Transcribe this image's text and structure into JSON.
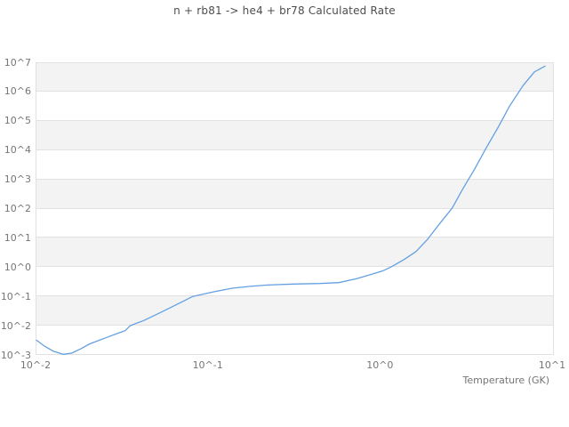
{
  "title": "n + rb81 -> he4 + br78 Calculated Rate",
  "x_axis": {
    "label": "Temperature (GK)",
    "tick_labels": [
      "10^-2",
      "10^-1",
      "10^0",
      "10^1"
    ],
    "tick_exponents": [
      -2,
      -1,
      0,
      1
    ]
  },
  "y_axis": {
    "tick_labels": [
      "10^7",
      "10^6",
      "10^5",
      "10^4",
      "10^3",
      "10^2",
      "10^1",
      "10^0",
      "10^-1",
      "10^-2",
      "10^-3"
    ],
    "tick_exponents": [
      7,
      6,
      5,
      4,
      3,
      2,
      1,
      0,
      -1,
      -2,
      -3
    ]
  },
  "colors": {
    "line": "#64a0e1",
    "gridline": "#e2e2e2",
    "band": "#f3f3f3",
    "title_text": "#4d4d4d",
    "tick_text": "#757575",
    "background": "#ffffff"
  },
  "chart_data": {
    "type": "line",
    "title": "n + rb81 -> he4 + br78 Calculated Rate",
    "xlabel": "Temperature (GK)",
    "ylabel": "",
    "xscale": "log",
    "yscale": "log",
    "xlim": [
      0.01,
      10
    ],
    "ylim": [
      0.001,
      10000000
    ],
    "grid": "horizontal decade gridlines with alternating gray/white decade bands",
    "legend": "none",
    "series": [
      {
        "name": "calculated rate",
        "color": "#64a0e1",
        "x": [
          0.01,
          0.011,
          0.0125,
          0.0143,
          0.016,
          0.018,
          0.0204,
          0.026,
          0.0328,
          0.035,
          0.042,
          0.053,
          0.067,
          0.081,
          0.108,
          0.137,
          0.174,
          0.22,
          0.31,
          0.44,
          0.57,
          0.72,
          0.87,
          1.03,
          1.16,
          1.36,
          1.6,
          1.87,
          2.18,
          2.6,
          3.0,
          3.5,
          4.1,
          4.8,
          5.6,
          6.7,
          7.8,
          9.0
        ],
        "y": [
          0.0032,
          0.0021,
          0.00135,
          0.00105,
          0.00115,
          0.0016,
          0.0024,
          0.0041,
          0.0068,
          0.01,
          0.015,
          0.029,
          0.057,
          0.1,
          0.145,
          0.19,
          0.22,
          0.245,
          0.265,
          0.275,
          0.295,
          0.4,
          0.55,
          0.75,
          1.05,
          1.8,
          3.4,
          9.0,
          29,
          105,
          480,
          2200,
          12000,
          60000,
          320000,
          1600000,
          4700000,
          7400000
        ]
      }
    ]
  }
}
